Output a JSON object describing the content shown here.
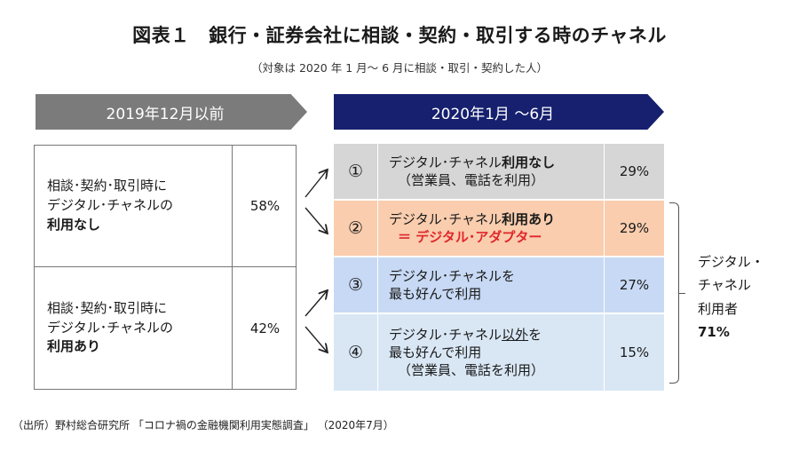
{
  "title": "図表１　銀行・証券会社に相談・契約・取引する時のチャネル",
  "subtitle": "（対象は 2020 年 1 月～ 6 月に相談・取引・契約した人）",
  "banner_old": "2019年12月以前",
  "banner_new": "2020年1月 ～6月",
  "left_rows": [
    {
      "line1": "相談･契約･取引時に",
      "line2": "デジタル･チャネルの",
      "line3": "利用なし",
      "pct": "58%"
    },
    {
      "line1": "相談･契約･取引時に",
      "line2": "デジタル･チャネルの",
      "line3": "利用あり",
      "pct": "42%"
    }
  ],
  "right_rows": [
    {
      "num": "①",
      "pre": "デジタル･チャネル",
      "bold": "利用なし",
      "line2": "（営業員、電話を利用）",
      "pct": "29%",
      "color": "#d6d6d6"
    },
    {
      "num": "②",
      "pre": "デジタル･チャネル",
      "bold": "利用あり",
      "line2": "＝ デジタル･アダプター",
      "pct": "29%",
      "color": "#f9cdae"
    },
    {
      "num": "③",
      "line1": "デジタル･チャネルを",
      "line2": "最も好んで利用",
      "pct": "27%",
      "color": "#c7d9f4"
    },
    {
      "num": "④",
      "pre": "デジタル･チャネル",
      "ul": "以外",
      "post": "を",
      "line2": "最も好んで利用",
      "line3": "（営業員、電話を利用）",
      "pct": "15%",
      "color": "#d9e7f5"
    }
  ],
  "side_label": {
    "line1": "デジタル・",
    "line2": "チャネル",
    "line3": "利用者",
    "pct": "71%"
  },
  "source": "（出所）野村総合研究所 「コロナ禍の金融機関利用実態調査」 （2020年7月）",
  "colors": {
    "banner_old": "#7b7b7b",
    "banner_new": "#16206e",
    "accent_red": "#e0262b"
  }
}
